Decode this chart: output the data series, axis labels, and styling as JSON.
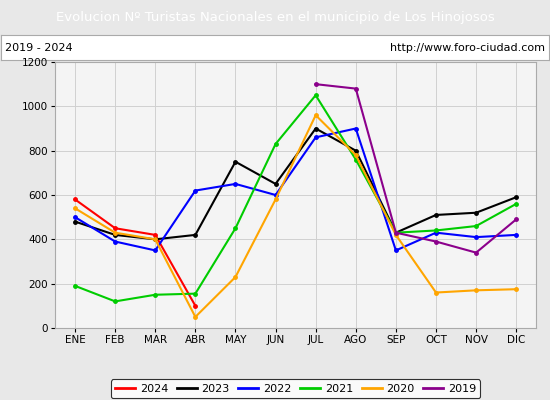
{
  "title": "Evolucion Nº Turistas Nacionales en el municipio de Los Hinojosos",
  "subtitle_left": "2019 - 2024",
  "subtitle_right": "http://www.foro-ciudad.com",
  "title_bg_color": "#5b9bd5",
  "title_text_color": "white",
  "months": [
    "ENE",
    "FEB",
    "MAR",
    "ABR",
    "MAY",
    "JUN",
    "JUL",
    "AGO",
    "SEP",
    "OCT",
    "NOV",
    "DIC"
  ],
  "ylim": [
    0,
    1200
  ],
  "yticks": [
    0,
    200,
    400,
    600,
    800,
    1000,
    1200
  ],
  "series": {
    "2024": {
      "color": "red",
      "data": [
        580,
        450,
        420,
        100,
        null,
        null,
        null,
        null,
        null,
        null,
        null,
        null
      ]
    },
    "2023": {
      "color": "black",
      "data": [
        480,
        420,
        400,
        420,
        750,
        650,
        900,
        800,
        430,
        510,
        520,
        590
      ]
    },
    "2022": {
      "color": "blue",
      "data": [
        500,
        390,
        350,
        620,
        650,
        600,
        860,
        900,
        350,
        430,
        410,
        420
      ]
    },
    "2021": {
      "color": "#00cc00",
      "data": [
        190,
        120,
        150,
        155,
        450,
        830,
        1050,
        760,
        430,
        440,
        460,
        560
      ]
    },
    "2020": {
      "color": "orange",
      "data": [
        540,
        430,
        400,
        50,
        230,
        580,
        960,
        780,
        420,
        160,
        170,
        175
      ]
    },
    "2019": {
      "color": "#8b008b",
      "data": [
        null,
        null,
        null,
        null,
        null,
        null,
        1100,
        1080,
        430,
        390,
        340,
        490
      ]
    }
  },
  "legend_order": [
    "2024",
    "2023",
    "2022",
    "2021",
    "2020",
    "2019"
  ],
  "grid_color": "#d0d0d0",
  "bg_color": "#e8e8e8",
  "plot_bg_color": "#f4f4f4",
  "border_color": "#aaaaaa"
}
